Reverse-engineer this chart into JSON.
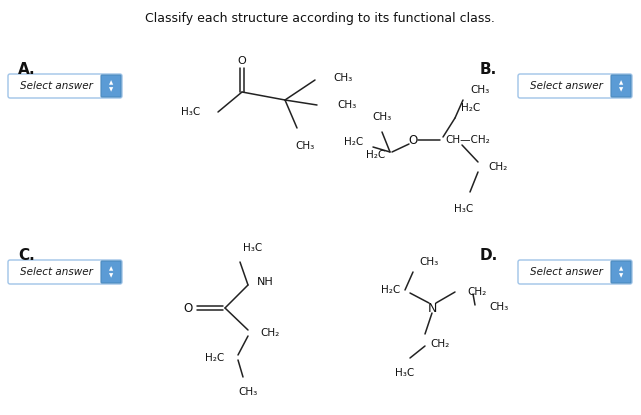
{
  "title": "Classify each structure according to its functional class.",
  "bg_color": "#ffffff",
  "label_A": "A.",
  "label_B": "B.",
  "label_C": "C.",
  "label_D": "D.",
  "select_answer_text": "Select answer",
  "select_btn_color": "#5b9bd5",
  "select_btn_border": "#4a8abf",
  "select_btn_text_color": "#1a1a1a"
}
